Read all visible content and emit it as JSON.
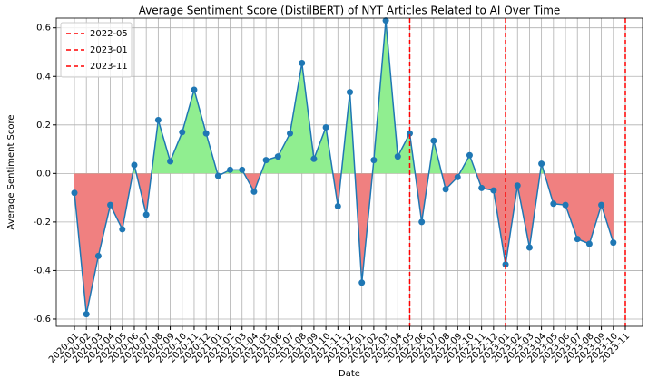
{
  "chart_data": {
    "type": "line",
    "title": "Average Sentiment Score (DistilBERT) of NYT Articles Related to AI Over Time",
    "xlabel": "Date",
    "ylabel": "Average Sentiment Score",
    "categories": [
      "2020-01",
      "2020-02",
      "2020-03",
      "2020-04",
      "2020-05",
      "2020-06",
      "2020-07",
      "2020-08",
      "2020-09",
      "2020-10",
      "2020-11",
      "2020-12",
      "2021-01",
      "2021-02",
      "2021-03",
      "2021-04",
      "2021-05",
      "2021-06",
      "2021-07",
      "2021-08",
      "2021-09",
      "2021-10",
      "2021-11",
      "2021-12",
      "2022-01",
      "2022-02",
      "2022-03",
      "2022-04",
      "2022-05",
      "2022-06",
      "2022-07",
      "2022-08",
      "2022-09",
      "2022-10",
      "2022-11",
      "2022-12",
      "2023-01",
      "2023-02",
      "2023-03",
      "2023-04",
      "2023-05",
      "2023-06",
      "2023-07",
      "2023-08",
      "2023-09",
      "2023-10",
      "2023-11"
    ],
    "series": [
      {
        "name": "Average Sentiment Score",
        "color": "#1f77b4",
        "values": [
          -0.08,
          -0.58,
          -0.34,
          -0.13,
          -0.23,
          0.035,
          -0.17,
          0.22,
          0.05,
          0.17,
          0.345,
          0.165,
          -0.01,
          0.015,
          0.015,
          -0.075,
          0.055,
          0.07,
          0.165,
          0.455,
          0.06,
          0.19,
          -0.135,
          0.335,
          -0.45,
          0.055,
          0.63,
          0.07,
          0.165,
          -0.2,
          0.135,
          -0.065,
          -0.015,
          0.075,
          -0.06,
          -0.07,
          -0.375,
          -0.05,
          -0.305,
          0.04,
          -0.125,
          -0.13,
          -0.27,
          -0.29,
          -0.13,
          -0.285,
          null
        ]
      }
    ],
    "positive_color": "#90ee90",
    "negative_color": "#f08080",
    "vlines": [
      "2022-05",
      "2023-01",
      "2023-11"
    ],
    "vline_color": "#ff0000",
    "ylim": [
      -0.63,
      0.64
    ],
    "yticks": [
      -0.6,
      -0.4,
      -0.2,
      {
        "value": 0,
        "label": "0.0"
      },
      0.2,
      0.4,
      0.6
    ],
    "grid": true,
    "legend": "upper left"
  }
}
